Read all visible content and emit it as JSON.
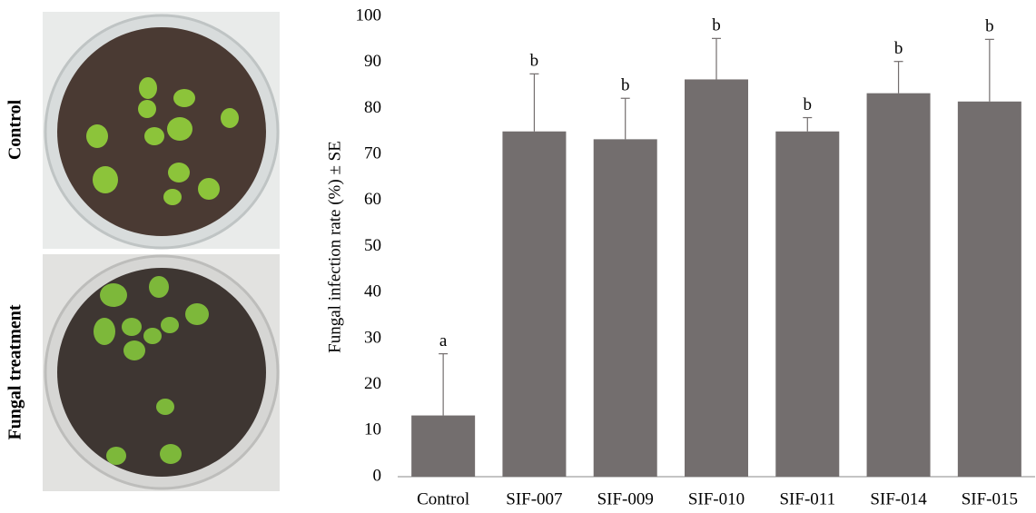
{
  "panels": {
    "labels": [
      "Control",
      "Fungal treatment"
    ]
  },
  "chart_data": {
    "type": "bar",
    "y_label": "Fungal infection rate (%) ± SE",
    "categories": [
      "Control",
      "SIF-007",
      "SIF-009",
      "SIF-010",
      "SIF-011",
      "SIF-014",
      "SIF-015"
    ],
    "values": [
      13.3,
      75,
      73.3,
      86.3,
      75,
      83.3,
      81.5
    ],
    "errors": [
      13.4,
      12.5,
      8.9,
      8.9,
      3,
      6.9,
      13.5
    ],
    "annotations": [
      "a",
      "b",
      "b",
      "b",
      "b",
      "b",
      "b"
    ],
    "color": "#736e6e",
    "ylim": [
      0,
      100
    ],
    "yticks": [
      0,
      10,
      20,
      30,
      40,
      50,
      60,
      70,
      80,
      90,
      100
    ],
    "grid": false
  }
}
